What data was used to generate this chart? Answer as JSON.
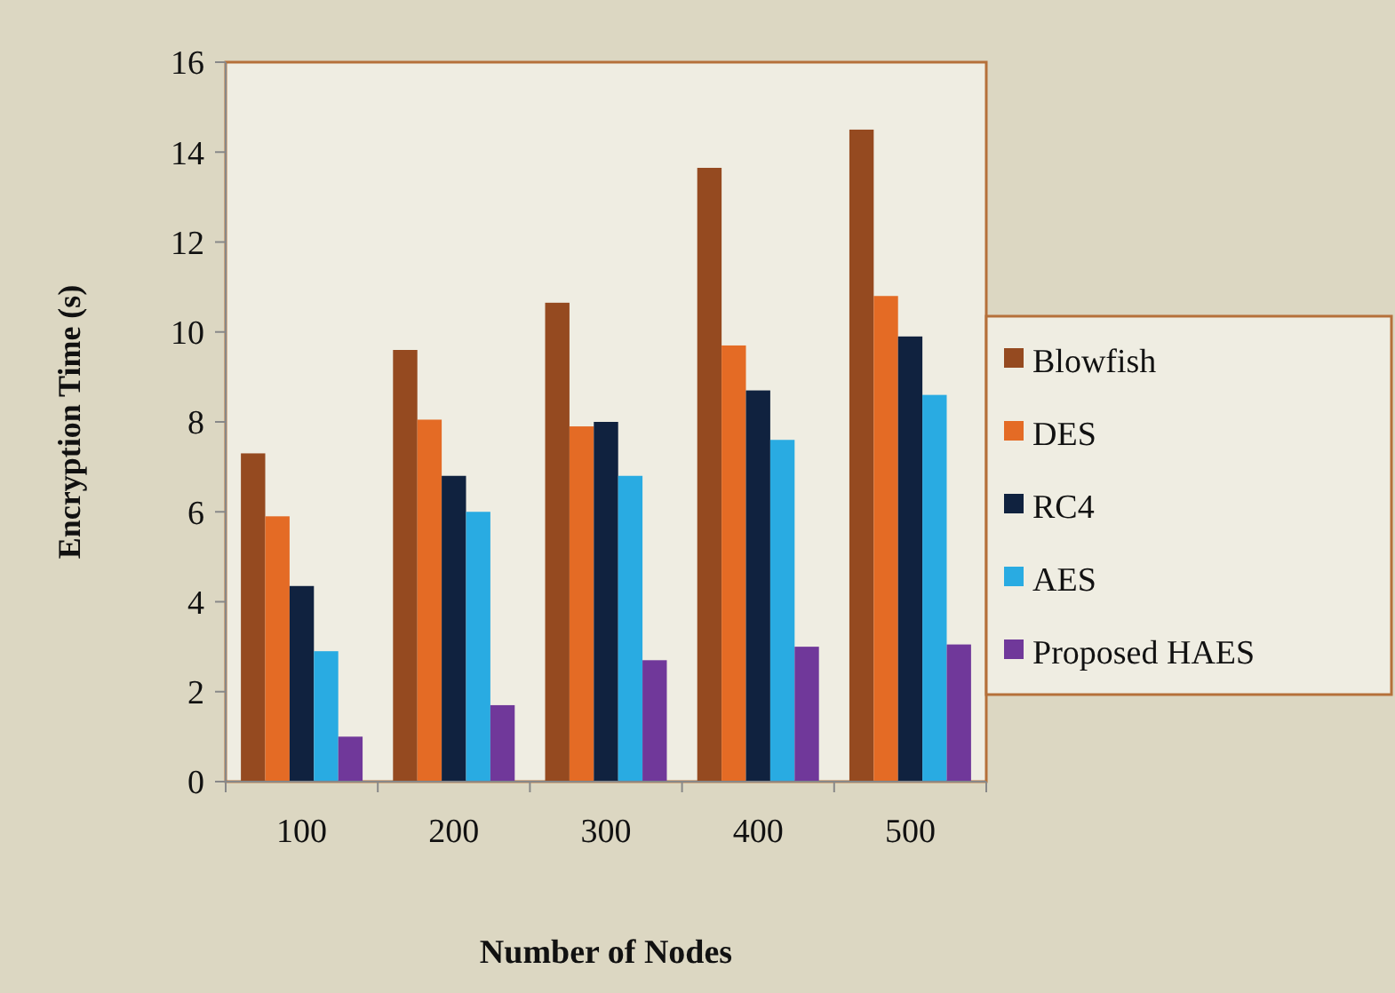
{
  "chart_data": {
    "type": "bar",
    "xlabel": "Number of Nodes",
    "ylabel": "Encryption Time (s)",
    "categories": [
      "100",
      "200",
      "300",
      "400",
      "500"
    ],
    "series": [
      {
        "name": "Blowfish",
        "color": "#954a20",
        "values": [
          7.3,
          9.6,
          10.65,
          13.65,
          14.5
        ]
      },
      {
        "name": "DES",
        "color": "#e46b25",
        "values": [
          5.9,
          8.05,
          7.9,
          9.7,
          10.8
        ]
      },
      {
        "name": "RC4",
        "color": "#10223f",
        "values": [
          4.35,
          6.8,
          8.0,
          8.7,
          9.9
        ]
      },
      {
        "name": "AES",
        "color": "#29abe2",
        "values": [
          2.9,
          6.0,
          6.8,
          7.6,
          8.6
        ]
      },
      {
        "name": "Proposed HAES",
        "color": "#70389a",
        "values": [
          1.0,
          1.7,
          2.7,
          3.0,
          3.05
        ]
      }
    ],
    "ylim": [
      0,
      16
    ],
    "yticks": [
      0,
      2,
      4,
      6,
      8,
      10,
      12,
      14,
      16
    ],
    "legend": "right"
  }
}
